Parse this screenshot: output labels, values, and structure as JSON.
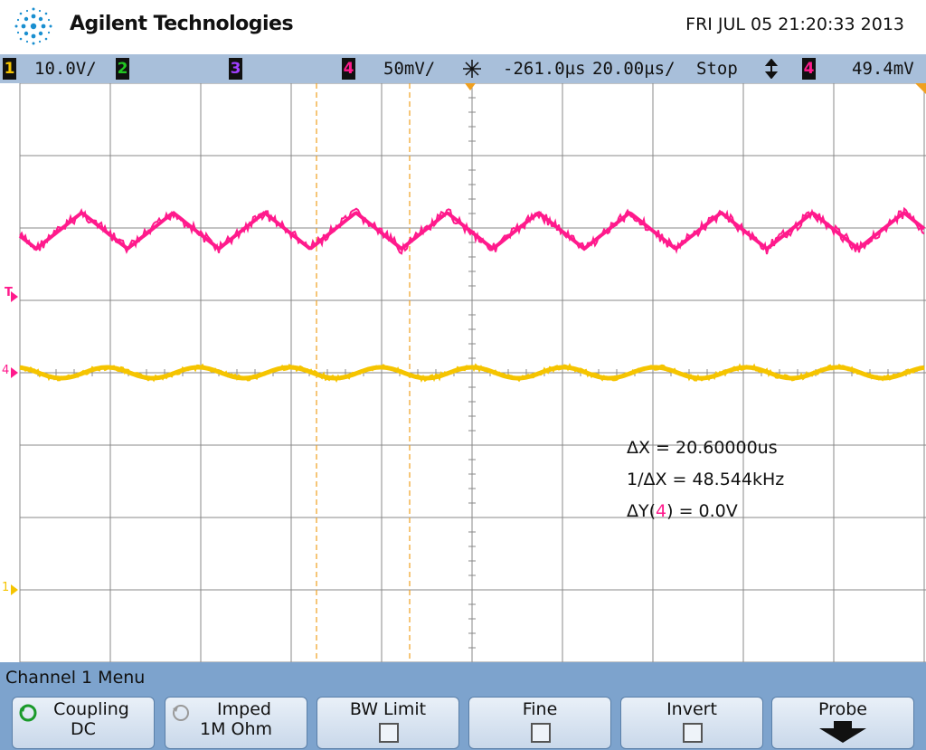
{
  "header": {
    "brand": "Agilent Technologies",
    "datetime": "FRI JUL 05 21:20:33 2013"
  },
  "statusbar": {
    "ch1": {
      "num": "1",
      "scale": "10.0V/",
      "color": "#f5c400"
    },
    "ch2": {
      "num": "2",
      "color": "#22c522"
    },
    "ch3": {
      "num": "3",
      "color": "#a040ff"
    },
    "ch4": {
      "num": "4",
      "scale": "50mV/",
      "color": "#ff1a8c"
    },
    "trigger_delay": "-261.0µs",
    "timebase": "20.00µs/",
    "run_state": "Stop",
    "trigger_icon": "trigger-edge-icon",
    "trig_ch": "4",
    "trig_level": "49.4mV"
  },
  "markers": {
    "trigger": "T",
    "ch4_ground": "4",
    "ch1_ground": "1"
  },
  "measurements": {
    "delta_x": "ΔX = 20.60000us",
    "inv_delta_x": "1/ΔX = 48.544kHz",
    "delta_y_prefix": "ΔY(",
    "delta_y_ch": "4",
    "delta_y_suffix": ") = 0.0V"
  },
  "menu": {
    "title": "Channel 1  Menu",
    "softkeys": [
      {
        "label": "Coupling",
        "value": "DC"
      },
      {
        "label": "Imped",
        "value": "1M Ohm"
      },
      {
        "label": "BW Limit"
      },
      {
        "label": "Fine"
      },
      {
        "label": "Invert"
      },
      {
        "label": "Probe"
      }
    ]
  },
  "colors": {
    "ch4_trace": "#ff1a8c",
    "ch1_trace": "#f5c400",
    "cursor": "#f0a020",
    "grid": "#888888"
  }
}
